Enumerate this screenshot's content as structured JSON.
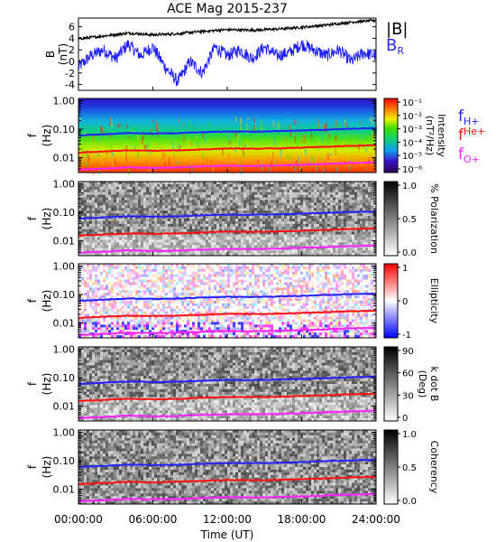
{
  "title": "ACE Mag 2015-237",
  "xlabel": "Time (UT)",
  "x_ticks": [
    "00:00:00",
    "06:00:00",
    "12:00:00",
    "18:00:00",
    "24:00:00"
  ],
  "x_tick_hours": [
    0,
    6,
    12,
    18,
    24
  ],
  "freq_ticks": [
    "1.00",
    "0.10",
    "0.01"
  ],
  "freq_tick_values": [
    1.0,
    0.1,
    0.01
  ],
  "panel_ylabel_top": "f",
  "panel_ylabel_bottom": "(Hz)",
  "colors": {
    "B_total": "#000000",
    "B_R": "#1a1aff",
    "f_H": "#2222ff",
    "f_He": "#ff1111",
    "f_O": "#ff22ff"
  },
  "legend": {
    "B_total": "|B|",
    "B_R_main": "B",
    "B_R_sub": "R",
    "f_main": "f",
    "f_H_sub": "H+",
    "f_He_sub": "He+",
    "f_O_sub": "O+"
  },
  "chart_data": [
    {
      "type": "line",
      "panel": "magnetic field",
      "ylabel_top": "B",
      "ylabel_bottom": "(nT)",
      "ylim": [
        -5,
        7.5
      ],
      "yticks": [
        "6",
        "4",
        "2",
        "0",
        "-2",
        "-4"
      ],
      "ytick_values": [
        6,
        4,
        2,
        0,
        -2,
        -4
      ],
      "series": [
        {
          "name": "|B|",
          "x_hours": [
            0,
            2,
            4,
            6,
            8,
            10,
            12,
            14,
            16,
            18,
            20,
            22,
            24
          ],
          "values": [
            3.9,
            4.4,
            4.9,
            4.6,
            4.8,
            5.2,
            5.5,
            5.4,
            5.6,
            5.9,
            6.3,
            6.8,
            7.1
          ]
        },
        {
          "name": "B_R",
          "x_hours": [
            0,
            1,
            2,
            3,
            4,
            5,
            6,
            7,
            8,
            9,
            10,
            11,
            12,
            13,
            14,
            15,
            16,
            17,
            18,
            19,
            20,
            21,
            22,
            23,
            24
          ],
          "values": [
            -1,
            1,
            2,
            0.5,
            3,
            1,
            2.5,
            -1,
            -3.5,
            0,
            -2,
            2.5,
            1,
            2,
            0.5,
            2.5,
            1,
            1.5,
            3,
            2,
            1,
            2,
            0,
            1.5,
            1
          ]
        }
      ]
    },
    {
      "type": "heatmap",
      "panel": "intensity",
      "colorbar_label": "Intensity",
      "colorbar_units": "(nT²/Hz)",
      "colorbar_ticks": [
        "10⁻¹",
        "10⁻²",
        "10⁻³",
        "10⁻⁴",
        "10⁻⁵",
        "10⁻⁶"
      ],
      "colorbar_tick_exponents": [
        -1,
        -2,
        -3,
        -4,
        -5,
        -6
      ],
      "colormap": "rainbow"
    },
    {
      "type": "heatmap",
      "panel": "polarization",
      "colorbar_label": "% Polarization",
      "colorbar_ticks": [
        "1.0",
        "0.5",
        "0.0"
      ],
      "colorbar_tick_values": [
        1.0,
        0.5,
        0.0
      ],
      "colormap": "grayscale"
    },
    {
      "type": "heatmap",
      "panel": "ellipticity",
      "colorbar_label": "Ellipticity",
      "colorbar_ticks": [
        "1",
        "0",
        "-1"
      ],
      "colorbar_tick_values": [
        1,
        0,
        -1
      ],
      "colormap": "blue-white-red"
    },
    {
      "type": "heatmap",
      "panel": "k dot B",
      "colorbar_label": "k dot B",
      "colorbar_units": "(Deg)",
      "colorbar_ticks": [
        "90",
        "60",
        "30",
        "0"
      ],
      "colorbar_tick_values": [
        90,
        60,
        30,
        0
      ],
      "colormap": "grayscale"
    },
    {
      "type": "heatmap",
      "panel": "coherency",
      "colorbar_label": "Coherency",
      "colorbar_ticks": [
        "1.0",
        "0.5",
        "0.0"
      ],
      "colorbar_tick_values": [
        1.0,
        0.5,
        0.0
      ],
      "colormap": "grayscale"
    }
  ],
  "gyro_lines": {
    "x_hours": [
      0,
      2,
      4,
      6,
      8,
      10,
      12,
      14,
      16,
      18,
      20,
      22,
      24
    ],
    "f_H_plus": [
      0.06,
      0.066,
      0.073,
      0.07,
      0.072,
      0.078,
      0.083,
      0.082,
      0.085,
      0.09,
      0.096,
      0.103,
      0.108
    ],
    "f_He_plus": [
      0.015,
      0.0165,
      0.018,
      0.0175,
      0.018,
      0.0195,
      0.021,
      0.0205,
      0.021,
      0.0225,
      0.024,
      0.026,
      0.027
    ],
    "f_O_plus": [
      0.0038,
      0.0041,
      0.0046,
      0.0044,
      0.0045,
      0.0049,
      0.0052,
      0.0051,
      0.0053,
      0.0056,
      0.006,
      0.0065,
      0.0068
    ]
  }
}
